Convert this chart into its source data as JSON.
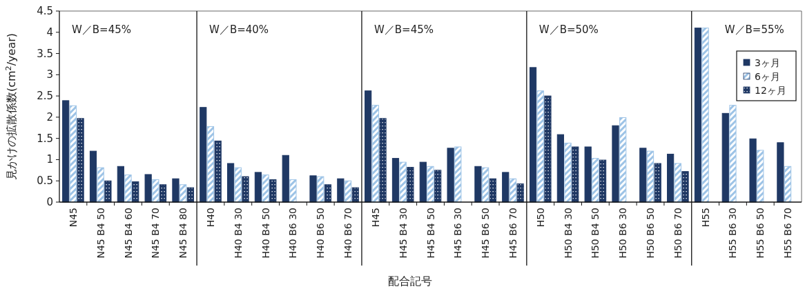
{
  "chart_data": [
    {
      "type": "bar",
      "categories": [
        "N45",
        "N45 B4 50",
        "N45 B4 60",
        "N45 B4 70",
        "N45 B4 80"
      ],
      "ylabel": "見かけの拡散係数(cm$^{2}$/year)",
      "ylim": [
        0,
        4.5
      ],
      "yticks": [
        0,
        0.5,
        1,
        1.5,
        2,
        2.5,
        3,
        3.5,
        4,
        4.5
      ],
      "annotations": [
        "W／B=45%"
      ],
      "legend": false,
      "series": [
        {
          "color": "#1f3864",
          "values": [
            2.39,
            1.2,
            0.84,
            0.65,
            0.55
          ]
        },
        {
          "color": "#9dc3e6",
          "values": [
            2.27,
            0.81,
            0.64,
            0.53,
            0.41
          ]
        },
        {
          "color": "#1f3864",
          "values": [
            1.97,
            0.5,
            0.48,
            0.41,
            0.34
          ]
        }
      ]
    },
    {
      "type": "bar",
      "categories": [
        "H40",
        "H40 B4 30",
        "H40 B4 50",
        "H40 B6 30",
        "H40 B6 50",
        "H40 B6 70"
      ],
      "ylim": [
        0,
        4.5
      ],
      "tick_labels": "x",
      "annotations": [
        "W／B=40%"
      ],
      "legend": false,
      "series": [
        {
          "color": "#1f3864",
          "values": [
            2.23,
            0.91,
            0.7,
            1.1,
            0.62,
            0.55
          ]
        },
        {
          "color": "#9dc3e6",
          "values": [
            1.78,
            0.81,
            0.64,
            0.53,
            0.6,
            0.5
          ]
        },
        {
          "color": "#1f3864",
          "values": [
            1.44,
            0.6,
            0.53,
            null,
            0.41,
            0.34
          ]
        }
      ]
    },
    {
      "type": "bar",
      "categories": [
        "H45",
        "H45 B4 30",
        "H45 B4 50",
        "H45 B6 30",
        "H45 B6 50",
        "H45 B6 70"
      ],
      "ylim": [
        0,
        4.5
      ],
      "tick_labels": "x",
      "xlabel": "配合記号",
      "annotations": [
        "W／B=45%"
      ],
      "legend": false,
      "series": [
        {
          "color": "#1f3864",
          "values": [
            2.62,
            1.03,
            0.94,
            1.27,
            0.84,
            0.7
          ]
        },
        {
          "color": "#9dc3e6",
          "values": [
            2.28,
            0.94,
            0.84,
            1.3,
            0.81,
            0.55
          ]
        },
        {
          "color": "#1f3864",
          "values": [
            1.97,
            0.82,
            0.75,
            null,
            0.55,
            0.43
          ]
        }
      ]
    },
    {
      "type": "bar",
      "categories": [
        "H50",
        "H50 B4 30",
        "H50 B4 50",
        "H50 B6 30",
        "H50 B6 50",
        "H50 B6 70"
      ],
      "ylim": [
        0,
        4.5
      ],
      "tick_labels": "x",
      "annotations": [
        "W／B=50%"
      ],
      "legend": false,
      "series": [
        {
          "color": "#1f3864",
          "values": [
            3.17,
            1.59,
            1.3,
            1.8,
            1.27,
            1.13
          ]
        },
        {
          "color": "#9dc3e6",
          "values": [
            2.62,
            1.39,
            1.03,
            1.99,
            1.2,
            0.91
          ]
        },
        {
          "color": "#1f3864",
          "values": [
            2.5,
            1.3,
            0.99,
            null,
            0.91,
            0.72
          ]
        }
      ]
    },
    {
      "type": "bar",
      "categories": [
        "H55",
        "H55 B6 30",
        "H55 B6 50",
        "H55 B6 70"
      ],
      "ylim": [
        0,
        4.5
      ],
      "tick_labels": "x",
      "annotations": [
        "W／B=55%"
      ],
      "legend": "top right",
      "series": [
        {
          "name": "3ヶ月",
          "color": "#1f3864",
          "values": [
            4.1,
            2.09,
            1.49,
            1.4
          ]
        },
        {
          "name": "6ヶ月",
          "color": "#9dc3e6",
          "values": [
            4.1,
            2.28,
            1.22,
            0.84
          ]
        },
        {
          "name": "12ヶ月",
          "color": "#1f3864",
          "values": [
            null,
            null,
            null,
            null
          ]
        }
      ]
    }
  ]
}
